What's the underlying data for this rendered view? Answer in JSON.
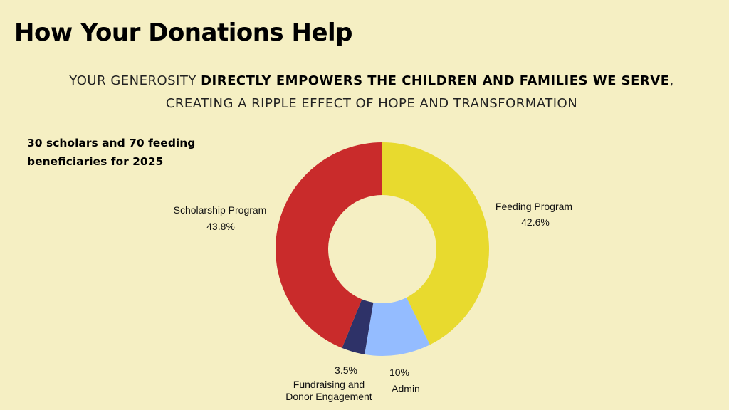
{
  "header": {
    "title": "How Your Donations Help",
    "subtitle_pre": "YOUR GENEROSITY ",
    "subtitle_bold": "DIRECTLY EMPOWERS THE CHILDREN AND FAMILIES WE SERVE",
    "subtitle_post": ",",
    "subtitle_line2": "CREATING A RIPPLE EFFECT OF HOPE AND TRANSFORMATION"
  },
  "note": {
    "line1": "30 scholars and 70 feeding",
    "line2": "beneficiaries for 2025"
  },
  "chart_data": {
    "type": "pie",
    "donut": true,
    "slices": [
      {
        "label": "Feeding Program",
        "value": 42.6,
        "value_label": "42.6%",
        "color": "#e8da2e"
      },
      {
        "label": "Admin",
        "value": 10,
        "value_label": "10%",
        "color": "#94bcff"
      },
      {
        "label": "Fundraising and Donor Engagement",
        "label_lines": [
          "Fundraising and",
          "Donor Engagement"
        ],
        "value": 3.5,
        "value_label": "3.5%",
        "color": "#2e3268"
      },
      {
        "label": "Scholarship Program",
        "value": 43.8,
        "value_label": "43.8%",
        "color": "#c92b2b"
      }
    ]
  }
}
